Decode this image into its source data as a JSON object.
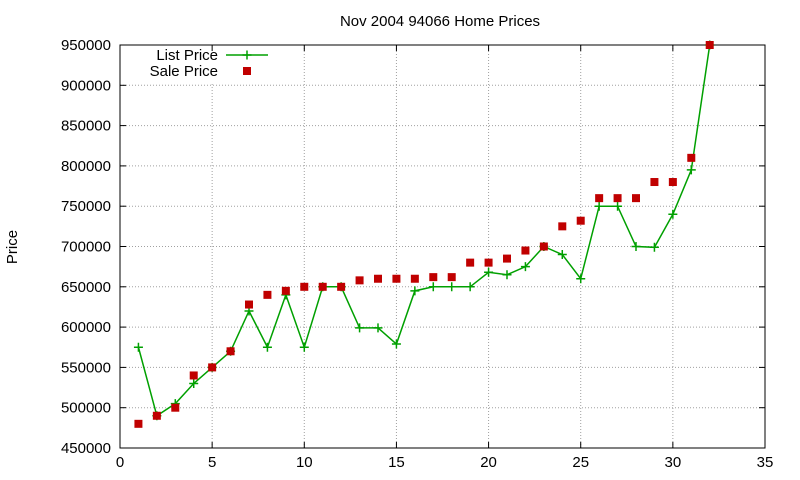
{
  "chart_data": {
    "type": "line",
    "title": "Nov 2004 94066 Home Prices",
    "xlabel": "",
    "ylabel": "Price",
    "xlim": [
      0,
      35
    ],
    "ylim": [
      450000,
      950000
    ],
    "xticks": [
      0,
      5,
      10,
      15,
      20,
      25,
      30,
      35
    ],
    "yticks": [
      450000,
      500000,
      550000,
      600000,
      650000,
      700000,
      750000,
      800000,
      850000,
      900000,
      950000
    ],
    "grid": true,
    "legend_position": "top-left",
    "x": [
      1,
      2,
      3,
      4,
      5,
      6,
      7,
      8,
      9,
      10,
      11,
      12,
      13,
      14,
      15,
      16,
      17,
      18,
      19,
      20,
      21,
      22,
      23,
      24,
      25,
      26,
      27,
      28,
      29,
      30,
      31,
      32
    ],
    "series": [
      {
        "name": "List Price",
        "style": "lines+crosses",
        "color": "#00a000",
        "values": [
          575000,
          490000,
          505000,
          530000,
          550000,
          570000,
          620000,
          575000,
          640000,
          575000,
          650000,
          650000,
          599000,
          599000,
          579000,
          645000,
          650000,
          650000,
          650000,
          668000,
          665000,
          675000,
          700000,
          690000,
          660000,
          750000,
          750000,
          700000,
          699000,
          740000,
          795000,
          950000
        ]
      },
      {
        "name": "Sale Price",
        "style": "squares",
        "color": "#c00000",
        "values": [
          480000,
          490000,
          500000,
          540000,
          550000,
          570000,
          628000,
          640000,
          645000,
          650000,
          650000,
          650000,
          658000,
          660000,
          660000,
          660000,
          662000,
          662000,
          680000,
          680000,
          685000,
          695000,
          700000,
          725000,
          732000,
          760000,
          760000,
          760000,
          780000,
          780000,
          810000,
          950000
        ]
      }
    ]
  }
}
